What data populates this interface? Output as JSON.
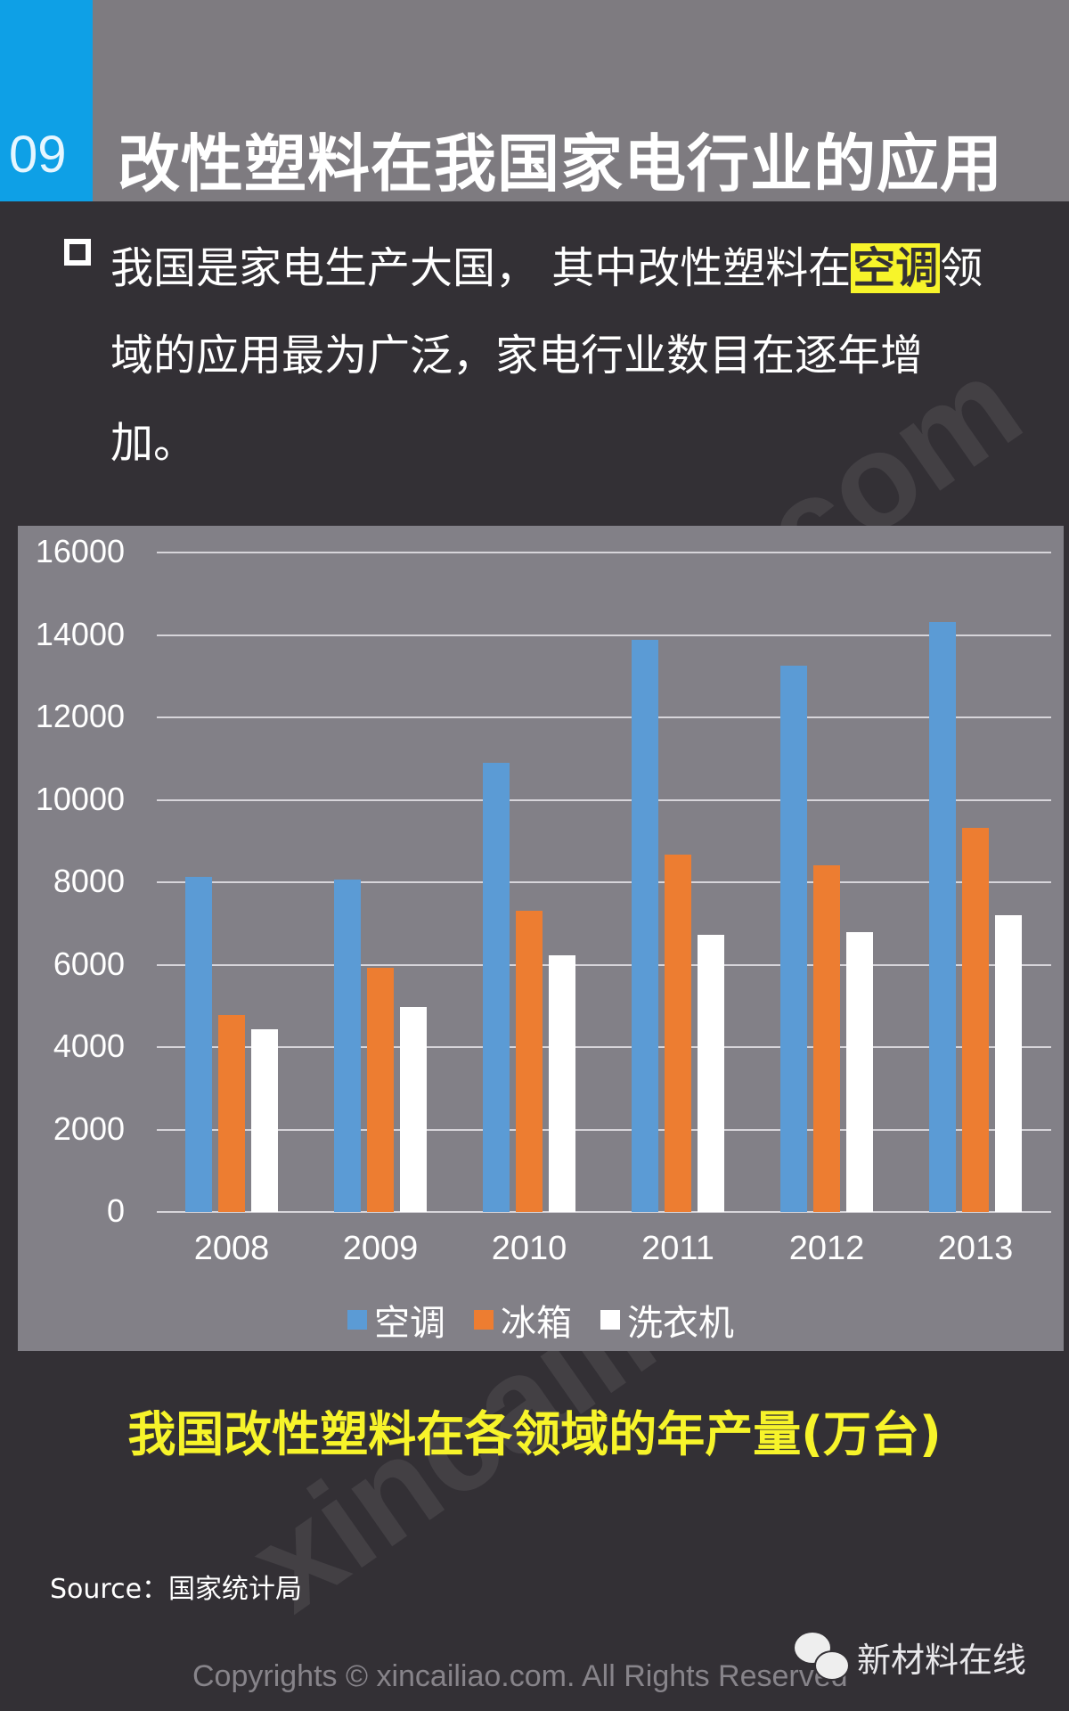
{
  "header": {
    "section_number": "09",
    "title": "改性塑料在我国家电行业的应用",
    "tab_color": "#0ea0e6"
  },
  "intro": {
    "part1": "我国是家电生产大国， 其中改性塑料在",
    "highlight": "空调",
    "part2": "领域的应用最为广泛，家电行业数目在逐年增加。",
    "highlight_color": "#f7f42a"
  },
  "watermark": "xincailiao.com",
  "chart_data": {
    "type": "bar",
    "title": "我国改性塑料在各领域的年产量(万台)",
    "xlabel": "",
    "ylabel": "",
    "categories": [
      "2008",
      "2009",
      "2010",
      "2011",
      "2012",
      "2013"
    ],
    "series": [
      {
        "name": "空调",
        "color": "#5b9bd5",
        "values": [
          8130,
          8070,
          10890,
          13890,
          13260,
          14320
        ]
      },
      {
        "name": "冰箱",
        "color": "#ed7d31",
        "values": [
          4780,
          5920,
          7310,
          8660,
          8410,
          9320
        ]
      },
      {
        "name": "洗衣机",
        "color": "#ffffff",
        "values": [
          4440,
          4970,
          6230,
          6720,
          6790,
          7200
        ]
      }
    ],
    "yticks": [
      "16000",
      "14000",
      "12000",
      "10000",
      "8000",
      "6000",
      "4000",
      "2000",
      "0"
    ],
    "ylim": [
      0,
      16000
    ],
    "grid": true,
    "legend_position": "bottom"
  },
  "caption": "我国改性塑料在各领域的年产量(万台)",
  "footer": {
    "source": "Source：国家统计局",
    "copyright": "Copyrights © xincailiao.com. All Rights Reserved",
    "brand": "新材料在线"
  }
}
